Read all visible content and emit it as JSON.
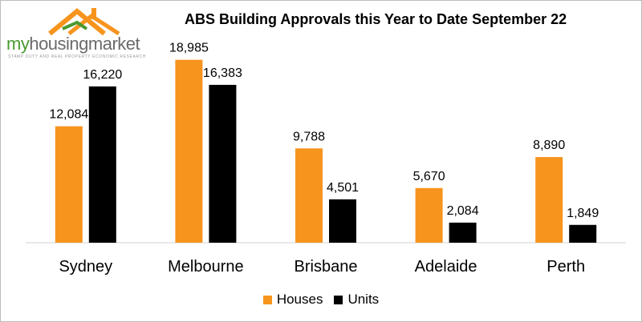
{
  "logo": {
    "part1": "my",
    "part2": "housing",
    "part3": "market",
    "tagline": "STAMP DUTY AND REAL PROPERTY ECONOMIC RESEARCH"
  },
  "colors": {
    "houses": "#F7941D",
    "units": "#000000",
    "logo_roof": "#F7941D",
    "logo_green": "#4A9A2F"
  },
  "chart_data": {
    "type": "bar",
    "title": "ABS Building Approvals this Year to Date September 22",
    "categories": [
      "Sydney",
      "Melbourne",
      "Brisbane",
      "Adelaide",
      "Perth"
    ],
    "series": [
      {
        "name": "Houses",
        "values": [
          12084,
          18985,
          9788,
          5670,
          8890
        ],
        "labels": [
          "12,084",
          "18,985",
          "9,788",
          "5,670",
          "8,890"
        ]
      },
      {
        "name": "Units",
        "values": [
          16220,
          16383,
          4501,
          2084,
          1849
        ],
        "labels": [
          "16,220",
          "16,383",
          "4,501",
          "2,084",
          "1,849"
        ]
      }
    ],
    "xlabel": "",
    "ylabel": "",
    "ylim": [
      0,
      20000
    ],
    "grid": false,
    "legend": "bottom"
  }
}
